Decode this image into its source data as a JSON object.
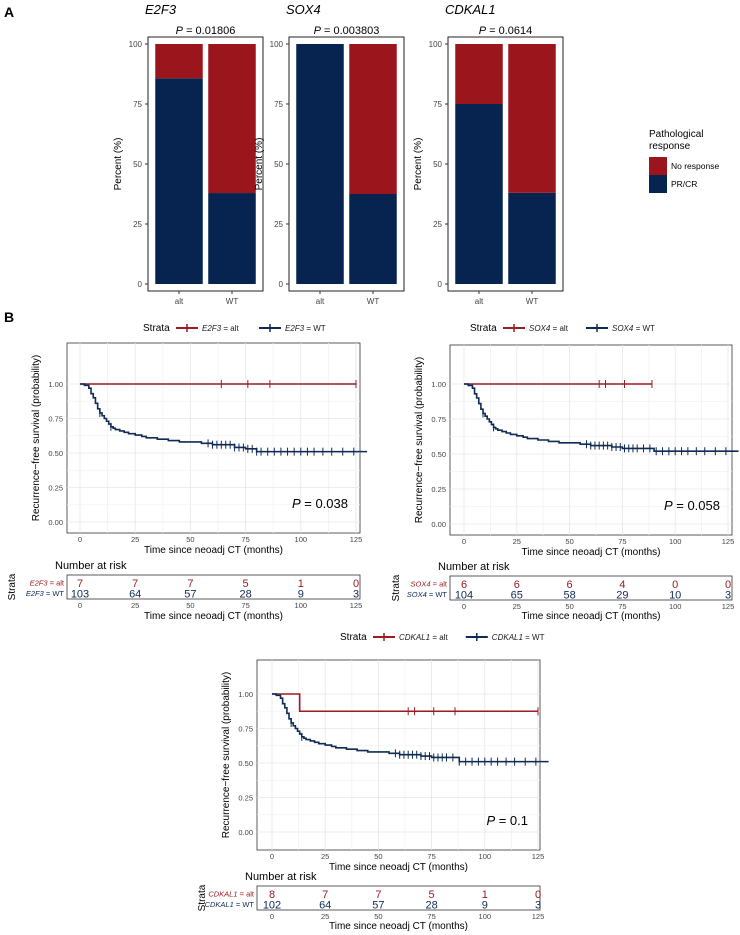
{
  "panels": {
    "a": "A",
    "b": "B"
  },
  "colors": {
    "alt": "#9b1b21",
    "wt": "#0f2a55",
    "no_response": "#9b151d",
    "prcr": "#07234f"
  },
  "chart_data": [
    {
      "type": "bar",
      "stacked": true,
      "gene": "E2F3",
      "title": "E2F3",
      "pvalue": "0.01806",
      "categories": [
        "alt",
        "WT"
      ],
      "ylabel": "Percent (%)",
      "ylim": [
        0,
        100
      ],
      "yticks": [
        "0",
        "25",
        "50",
        "75",
        "100"
      ],
      "series": [
        {
          "name": "PR/CR",
          "values": [
            85.7,
            37.9
          ]
        },
        {
          "name": "No response",
          "values": [
            14.3,
            62.1
          ]
        }
      ]
    },
    {
      "type": "bar",
      "stacked": true,
      "gene": "SOX4",
      "title": "SOX4",
      "pvalue": "0.003803",
      "categories": [
        "alt",
        "WT"
      ],
      "ylabel": "Percent (%)",
      "ylim": [
        0,
        100
      ],
      "yticks": [
        "0",
        "25",
        "50",
        "75",
        "100"
      ],
      "series": [
        {
          "name": "PR/CR",
          "values": [
            100,
            37.5
          ]
        },
        {
          "name": "No response",
          "values": [
            0,
            62.5
          ]
        }
      ]
    },
    {
      "type": "bar",
      "stacked": true,
      "gene": "CDKAL1",
      "title": "CDKAL1",
      "pvalue": "0.0614",
      "categories": [
        "alt",
        "WT"
      ],
      "ylabel": "Percent (%)",
      "ylim": [
        0,
        100
      ],
      "yticks": [
        "0",
        "25",
        "50",
        "75",
        "100"
      ],
      "series": [
        {
          "name": "PR/CR",
          "values": [
            75,
            38
          ]
        },
        {
          "name": "No response",
          "values": [
            25,
            62
          ]
        }
      ]
    },
    {
      "type": "line",
      "subtype": "kaplan-meier",
      "gene": "E2F3",
      "strata_title": "Strata",
      "legend": [
        "E2F3 = alt",
        "E2F3 = WT"
      ],
      "ylabel": "Recurrence−free survival (probability)",
      "xlabel": "Time since neoadj CT (months)",
      "xlim": [
        0,
        130
      ],
      "ylim": [
        0,
        1
      ],
      "xticks": [
        "0",
        "25",
        "50",
        "75",
        "100",
        "125"
      ],
      "yticks": [
        "0.00",
        "0.25",
        "0.50",
        "0.75",
        "1.00"
      ],
      "pvalue": "0.038",
      "series": [
        {
          "name": "E2F3 = alt",
          "x": [
            0,
            125
          ],
          "y": [
            1,
            1
          ],
          "censor": [
            64,
            76,
            86,
            125
          ]
        },
        {
          "name": "E2F3 = WT",
          "x": [
            0,
            2,
            4,
            5,
            6,
            7,
            8,
            9,
            10,
            11,
            12,
            13,
            14,
            15,
            16,
            18,
            20,
            22,
            25,
            28,
            30,
            35,
            40,
            45,
            55,
            60,
            70,
            75,
            80,
            130
          ],
          "y": [
            1,
            0.99,
            0.97,
            0.93,
            0.9,
            0.86,
            0.82,
            0.79,
            0.77,
            0.75,
            0.73,
            0.71,
            0.69,
            0.68,
            0.67,
            0.66,
            0.65,
            0.64,
            0.63,
            0.62,
            0.61,
            0.6,
            0.59,
            0.58,
            0.57,
            0.56,
            0.54,
            0.53,
            0.51,
            0.51
          ],
          "censor": [
            9,
            14,
            58,
            60,
            62,
            64,
            66,
            68,
            70,
            72,
            74,
            76,
            78,
            80,
            82,
            85,
            88,
            91,
            94,
            97,
            100,
            103,
            106,
            110,
            114,
            119,
            124
          ]
        }
      ],
      "risk_table": {
        "title": "Number at risk",
        "strata_label": "Strata",
        "rows": [
          {
            "label": "E2F3 = alt",
            "values": [
              "7",
              "7",
              "7",
              "5",
              "1",
              "0"
            ]
          },
          {
            "label": "E2F3 = WT",
            "values": [
              "103",
              "64",
              "57",
              "28",
              "9",
              "3"
            ]
          }
        ],
        "xticks": [
          "0",
          "25",
          "50",
          "75",
          "100",
          "125"
        ],
        "xlabel": "Time since neoadj CT (months)"
      }
    },
    {
      "type": "line",
      "subtype": "kaplan-meier",
      "gene": "SOX4",
      "strata_title": "Strata",
      "legend": [
        "SOX4 = alt",
        "SOX4 = WT"
      ],
      "ylabel": "Recurrence−free survival (probability)",
      "xlabel": "Time since neoadj CT (months)",
      "xlim": [
        0,
        130
      ],
      "ylim": [
        0,
        1
      ],
      "xticks": [
        "0",
        "25",
        "50",
        "75",
        "100",
        "125"
      ],
      "yticks": [
        "0.00",
        "0.25",
        "0.50",
        "0.75",
        "1.00"
      ],
      "pvalue": "0.058",
      "series": [
        {
          "name": "SOX4 = alt",
          "x": [
            0,
            89
          ],
          "y": [
            1,
            1
          ],
          "censor": [
            64,
            67,
            76,
            89
          ]
        },
        {
          "name": "SOX4 = WT",
          "x": [
            0,
            2,
            4,
            5,
            6,
            7,
            8,
            9,
            10,
            11,
            12,
            13,
            14,
            15,
            16,
            18,
            20,
            22,
            25,
            28,
            30,
            35,
            40,
            45,
            55,
            60,
            70,
            75,
            90,
            130
          ],
          "y": [
            1,
            0.99,
            0.97,
            0.93,
            0.9,
            0.86,
            0.82,
            0.79,
            0.77,
            0.75,
            0.73,
            0.71,
            0.69,
            0.68,
            0.67,
            0.66,
            0.65,
            0.64,
            0.63,
            0.62,
            0.61,
            0.6,
            0.59,
            0.58,
            0.57,
            0.56,
            0.55,
            0.54,
            0.52,
            0.52
          ],
          "censor": [
            9,
            14,
            58,
            60,
            62,
            64,
            66,
            68,
            70,
            72,
            74,
            76,
            78,
            80,
            82,
            85,
            88,
            91,
            94,
            97,
            100,
            103,
            106,
            110,
            114,
            119,
            124
          ]
        }
      ],
      "risk_table": {
        "title": "Number at risk",
        "strata_label": "Strata",
        "rows": [
          {
            "label": "SOX4 = alt",
            "values": [
              "6",
              "6",
              "6",
              "4",
              "0",
              "0"
            ]
          },
          {
            "label": "SOX4 = WT",
            "values": [
              "104",
              "65",
              "58",
              "29",
              "10",
              "3"
            ]
          }
        ],
        "xticks": [
          "0",
          "25",
          "50",
          "75",
          "100",
          "125"
        ],
        "xlabel": "Time since neoadj CT (months)"
      }
    },
    {
      "type": "line",
      "subtype": "kaplan-meier",
      "gene": "CDKAL1",
      "strata_title": "Strata",
      "legend": [
        "CDKAL1 = alt",
        "CDKAL1 = WT"
      ],
      "ylabel": "Recurrence−free survival (probability)",
      "xlabel": "Time since neoadj CT (months)",
      "xlim": [
        0,
        130
      ],
      "ylim": [
        0,
        1
      ],
      "xticks": [
        "0",
        "25",
        "50",
        "75",
        "100",
        "125"
      ],
      "yticks": [
        "0.00",
        "0.25",
        "0.50",
        "0.75",
        "1.00"
      ],
      "pvalue": "0.1",
      "series": [
        {
          "name": "CDKAL1 = alt",
          "x": [
            0,
            13,
            13,
            125
          ],
          "y": [
            1,
            1,
            0.875,
            0.875
          ],
          "censor": [
            64,
            67,
            76,
            86,
            125
          ]
        },
        {
          "name": "CDKAL1 = WT",
          "x": [
            0,
            2,
            4,
            5,
            6,
            7,
            8,
            9,
            10,
            11,
            12,
            13,
            14,
            15,
            16,
            18,
            20,
            22,
            25,
            28,
            30,
            35,
            40,
            45,
            55,
            60,
            70,
            75,
            88,
            130
          ],
          "y": [
            1,
            0.99,
            0.97,
            0.93,
            0.9,
            0.86,
            0.82,
            0.79,
            0.77,
            0.75,
            0.73,
            0.71,
            0.69,
            0.68,
            0.67,
            0.66,
            0.65,
            0.64,
            0.63,
            0.62,
            0.61,
            0.6,
            0.59,
            0.58,
            0.57,
            0.56,
            0.55,
            0.54,
            0.51,
            0.51
          ],
          "censor": [
            9,
            14,
            58,
            60,
            62,
            64,
            66,
            68,
            70,
            72,
            74,
            76,
            78,
            80,
            82,
            85,
            88,
            91,
            94,
            97,
            100,
            103,
            106,
            110,
            114,
            119,
            124
          ]
        }
      ],
      "risk_table": {
        "title": "Number at risk",
        "strata_label": "Strata",
        "rows": [
          {
            "label": "CDKAL1 = alt",
            "values": [
              "8",
              "7",
              "7",
              "5",
              "1",
              "0"
            ]
          },
          {
            "label": "CDKAL1 = WT",
            "values": [
              "102",
              "64",
              "57",
              "28",
              "9",
              "3"
            ]
          }
        ],
        "xticks": [
          "0",
          "25",
          "50",
          "75",
          "100",
          "125"
        ],
        "xlabel": "Time since neoadj CT (months)"
      }
    }
  ],
  "bar_legend": {
    "title_line1": "Pathological",
    "title_line2": "response",
    "items": [
      "No response",
      "PR/CR"
    ]
  }
}
